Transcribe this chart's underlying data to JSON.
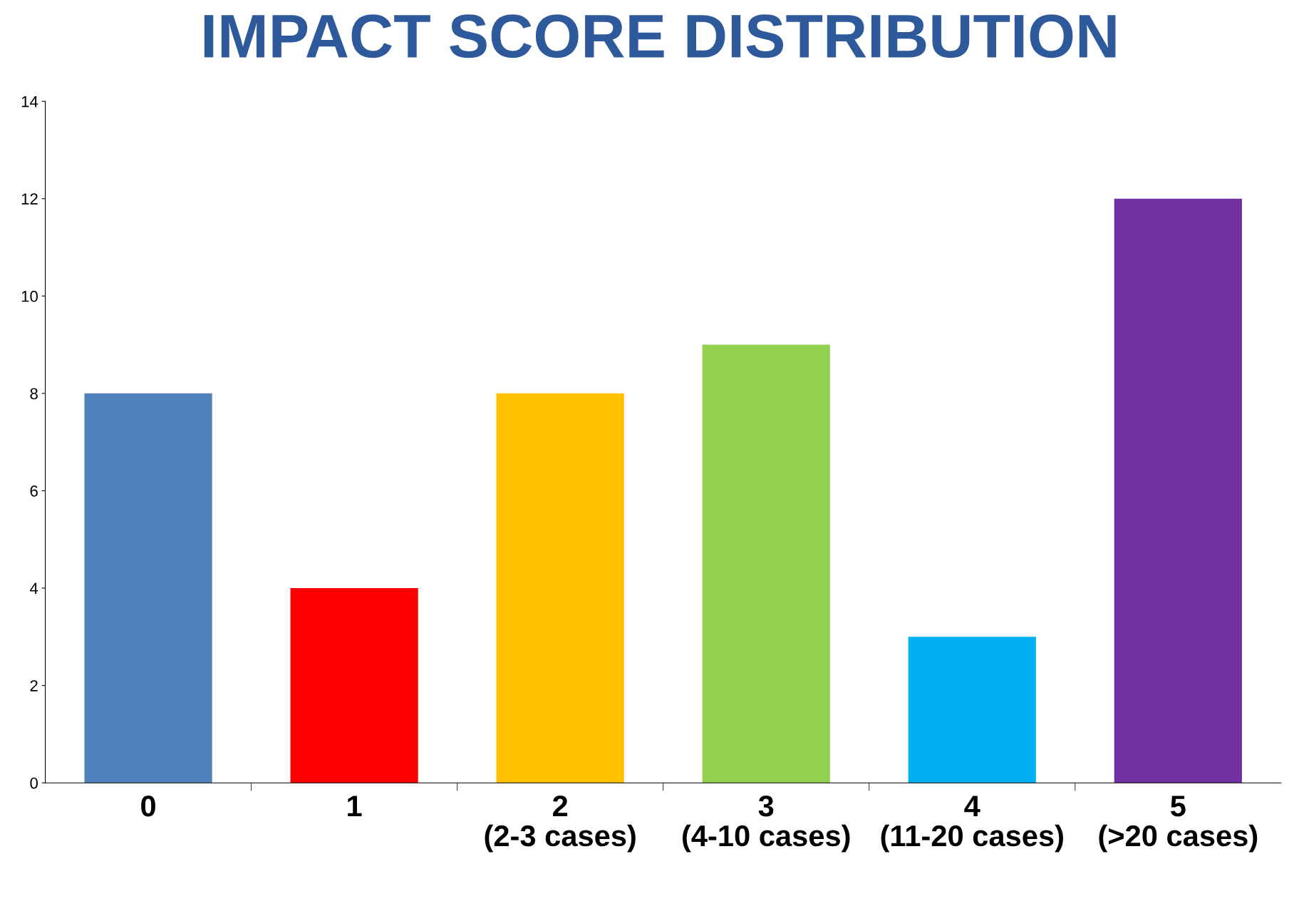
{
  "chart_data": {
    "type": "bar",
    "title": "IMPACT SCORE DISTRIBUTION",
    "categories": [
      "0",
      "1",
      "2\n(2-3 cases)",
      "3\n(4-10 cases)",
      "4\n(11-20 cases)",
      "5\n(>20 cases)"
    ],
    "values": [
      8,
      4,
      8,
      9,
      3,
      12
    ],
    "colors": [
      "#4f81bd",
      "#ff0000",
      "#ffc000",
      "#92d050",
      "#00b0f0",
      "#7030a0"
    ],
    "ylim": [
      0,
      14
    ],
    "yticks": [
      0,
      2,
      4,
      6,
      8,
      10,
      12,
      14
    ],
    "grid": false
  }
}
